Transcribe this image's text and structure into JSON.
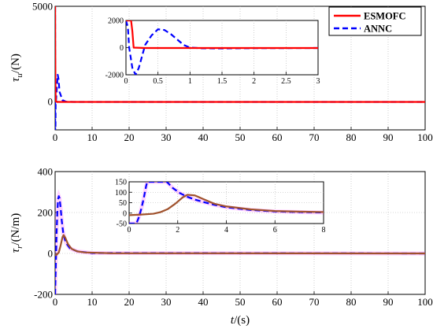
{
  "colors": {
    "esmofc": "#ff0000",
    "annc": "#0000ff",
    "esmofc_lower": "#a0522d",
    "annc_lower_glow": "#ff00ff"
  },
  "legend": {
    "entries": [
      "ESMOFC",
      "ANNC"
    ],
    "placement": "top-right"
  },
  "chart_data": [
    {
      "id": "tau-u-main",
      "type": "line",
      "ylabel_sym": "τ",
      "ylabel_sub": "u",
      "ylabel_unit": "/(N)",
      "xlim": [
        0,
        100
      ],
      "ylim": [
        -1500,
        5000
      ],
      "xticks": [
        "0",
        "10",
        "20",
        "30",
        "40",
        "50",
        "60",
        "70",
        "80",
        "90",
        "100"
      ],
      "yticks": [
        "0",
        "5000"
      ],
      "grid": true,
      "series": [
        {
          "name": "ESMOFC",
          "style": "solid",
          "x": [
            0,
            0.02,
            0.05,
            0.1,
            0.15,
            0.2,
            0.5,
            1,
            2,
            5,
            100
          ],
          "y": [
            5000,
            5000,
            3000,
            1000,
            300,
            0,
            -30,
            -30,
            -30,
            -30,
            -30
          ]
        },
        {
          "name": "ANNC",
          "style": "dashed",
          "x": [
            0,
            0.03,
            0.08,
            0.15,
            0.3,
            0.5,
            0.7,
            0.9,
            1.2,
            2,
            3,
            5,
            100
          ],
          "y": [
            5000,
            -2500,
            -2000,
            -200,
            200,
            800,
            1400,
            1200,
            500,
            60,
            -20,
            -30,
            -30
          ]
        }
      ]
    },
    {
      "id": "tau-u-inset",
      "type": "line",
      "xlim": [
        0,
        3
      ],
      "ylim": [
        -2000,
        2000
      ],
      "xticks": [
        "0",
        "0.5",
        "1",
        "1.5",
        "2",
        "2.5",
        "3"
      ],
      "yticks": [
        "-2000",
        "0",
        "2000"
      ],
      "grid": true,
      "series": [
        {
          "name": "ESMOFC",
          "style": "solid",
          "x": [
            0,
            0.04,
            0.06,
            0.08,
            0.1,
            0.12,
            0.3,
            1,
            3
          ],
          "y": [
            2000,
            2000,
            2000,
            2000,
            1200,
            0,
            -30,
            -30,
            -30
          ]
        },
        {
          "name": "ANNC",
          "style": "dashed",
          "x": [
            0,
            0.03,
            0.05,
            0.1,
            0.15,
            0.2,
            0.3,
            0.4,
            0.5,
            0.6,
            0.7,
            0.8,
            0.9,
            1,
            1.2,
            1.5,
            2,
            3
          ],
          "y": [
            2000,
            1500,
            0,
            -1500,
            -2000,
            -1500,
            200,
            900,
            1350,
            1300,
            1000,
            600,
            200,
            0,
            -50,
            -60,
            -40,
            -30
          ]
        }
      ]
    },
    {
      "id": "tau-r-main",
      "type": "line",
      "ylabel_sym": "τ",
      "ylabel_sub": "r",
      "ylabel_unit": "/(N/m)",
      "xlabel_sym": "t",
      "xlabel_unit": "/(s)",
      "xlim": [
        0,
        100
      ],
      "ylim": [
        -200,
        400
      ],
      "xticks": [
        "0",
        "10",
        "20",
        "30",
        "40",
        "50",
        "60",
        "70",
        "80",
        "90",
        "100"
      ],
      "yticks": [
        "-200",
        "0",
        "200",
        "400"
      ],
      "grid": true,
      "series": [
        {
          "name": "ESMOFC",
          "style": "solid",
          "x": [
            0,
            0.5,
            1,
            1.5,
            2,
            2.3,
            2.8,
            3.5,
            4.5,
            6,
            8,
            15,
            100
          ],
          "y": [
            -10,
            -5,
            5,
            40,
            80,
            90,
            75,
            45,
            22,
            10,
            5,
            1,
            0
          ]
        },
        {
          "name": "ANNC",
          "style": "dashed",
          "x": [
            0,
            0.2,
            0.4,
            0.6,
            0.8,
            1,
            1.2,
            1.5,
            1.8,
            2.2,
            2.6,
            3,
            4,
            6,
            10,
            100
          ],
          "y": [
            -200,
            -50,
            100,
            200,
            265,
            280,
            270,
            220,
            160,
            100,
            70,
            50,
            25,
            10,
            2,
            0
          ]
        }
      ]
    },
    {
      "id": "tau-r-inset",
      "type": "line",
      "xlim": [
        0,
        8
      ],
      "ylim": [
        -50,
        150
      ],
      "xticks": [
        "0",
        "2",
        "4",
        "6",
        "8"
      ],
      "yticks": [
        "-50",
        "0",
        "50",
        "100",
        "150"
      ],
      "grid": true,
      "series": [
        {
          "name": "ESMOFC",
          "style": "solid",
          "x": [
            0,
            0.5,
            1,
            1.3,
            1.6,
            1.9,
            2.2,
            2.4,
            2.7,
            3,
            3.5,
            4,
            5,
            6,
            7,
            8
          ],
          "y": [
            -10,
            -7,
            -3,
            5,
            20,
            45,
            75,
            88,
            85,
            70,
            45,
            32,
            18,
            10,
            7,
            5
          ]
        },
        {
          "name": "ANNC",
          "style": "dashed",
          "x": [
            0,
            0.1,
            0.2,
            0.3,
            0.4,
            0.5,
            0.6,
            0.7,
            0.75,
            1.55,
            1.8,
            2.1,
            2.4,
            2.7,
            3,
            3.5,
            4,
            5,
            6,
            7,
            8
          ],
          "y": [
            -50,
            -50,
            -50,
            -50,
            -20,
            20,
            70,
            130,
            150,
            150,
            120,
            95,
            78,
            65,
            55,
            40,
            28,
            15,
            8,
            5,
            3
          ]
        }
      ]
    }
  ]
}
